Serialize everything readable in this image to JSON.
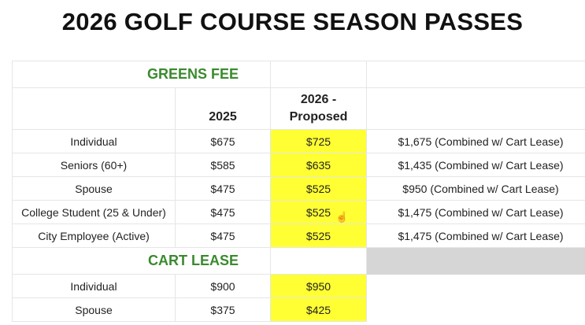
{
  "title": "2026 GOLF COURSE SEASON PASSES",
  "greens_fee": {
    "heading": "GREENS FEE",
    "col_2025": "2025",
    "col_2026": "2026 - Proposed",
    "rows": [
      {
        "label": "Individual",
        "y2025": "$675",
        "y2026": "$725",
        "combined": "$1,675 (Combined w/ Cart Lease)"
      },
      {
        "label": "Seniors (60+)",
        "y2025": "$585",
        "y2026": "$635",
        "combined": "$1,435 (Combined w/ Cart Lease)"
      },
      {
        "label": "Spouse",
        "y2025": "$475",
        "y2026": "$525",
        "combined": "$950 (Combined w/ Cart Lease)"
      },
      {
        "label": "College Student (25 & Under)",
        "y2025": "$475",
        "y2026": "$525",
        "combined": "$1,475 (Combined w/ Cart Lease)"
      },
      {
        "label": "City Employee (Active)",
        "y2025": "$475",
        "y2026": "$525",
        "combined": "$1,475 (Combined w/ Cart Lease)"
      }
    ]
  },
  "cart_lease": {
    "heading": "CART LEASE",
    "rows": [
      {
        "label": "Individual",
        "y2025": "$900",
        "y2026": "$950"
      },
      {
        "label": "Spouse",
        "y2025": "$375",
        "y2026": "$425"
      }
    ]
  },
  "colors": {
    "highlight": "#ffff33",
    "section_heading": "#3a8a2e",
    "empty_cell": "#d6d6d6"
  },
  "cursor_icon": "hand-pointer-icon"
}
